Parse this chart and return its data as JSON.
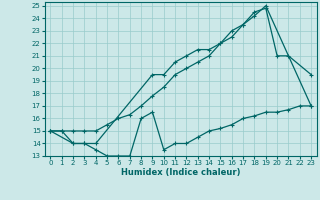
{
  "xlabel": "Humidex (Indice chaleur)",
  "bg_color": "#cce8e8",
  "grid_color": "#99cccc",
  "line_color": "#006666",
  "xlim": [
    -0.5,
    23.5
  ],
  "ylim": [
    13,
    25.3
  ],
  "xticks": [
    0,
    1,
    2,
    3,
    4,
    5,
    6,
    7,
    8,
    9,
    10,
    11,
    12,
    13,
    14,
    15,
    16,
    17,
    18,
    19,
    20,
    21,
    22,
    23
  ],
  "yticks": [
    13,
    14,
    15,
    16,
    17,
    18,
    19,
    20,
    21,
    22,
    23,
    24,
    25
  ],
  "line1_x": [
    0,
    1,
    2,
    3,
    4,
    5,
    6,
    7,
    8,
    9,
    10,
    11,
    12,
    13,
    14,
    15,
    16,
    17,
    18,
    19,
    23
  ],
  "line1_y": [
    15,
    15,
    15,
    15,
    15,
    15.5,
    16,
    16.3,
    17,
    17.8,
    18.5,
    19.5,
    20,
    20.5,
    21,
    22,
    22.5,
    23.5,
    24.2,
    25,
    17
  ],
  "line2_x": [
    0,
    2,
    3,
    4,
    9,
    10,
    11,
    12,
    13,
    14,
    15,
    16,
    17,
    18,
    19,
    20,
    21,
    23
  ],
  "line2_y": [
    15,
    14,
    14,
    14,
    19.5,
    19.5,
    20.5,
    21,
    21.5,
    21.5,
    22,
    23,
    23.5,
    24.5,
    24.8,
    21,
    21,
    19.5
  ],
  "line3_x": [
    0,
    1,
    2,
    3,
    4,
    5,
    6,
    7,
    8,
    9,
    10,
    11,
    12,
    13,
    14,
    15,
    16,
    17,
    18,
    19,
    20,
    21,
    22,
    23
  ],
  "line3_y": [
    15,
    15,
    14,
    14,
    13.5,
    13,
    13,
    13,
    16,
    16.5,
    13.5,
    14,
    14,
    14.5,
    15,
    15.2,
    15.5,
    16,
    16.2,
    16.5,
    16.5,
    16.7,
    17,
    17
  ]
}
